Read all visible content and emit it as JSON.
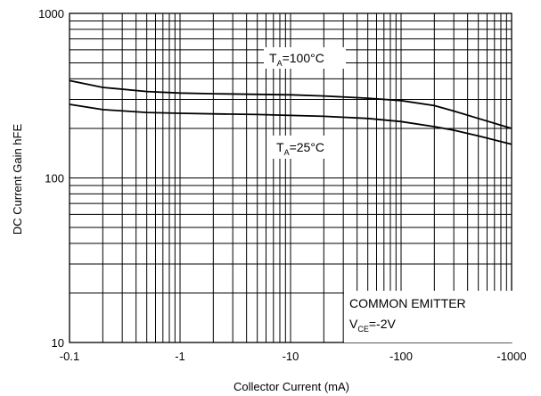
{
  "chart_data": {
    "type": "line",
    "xlabel": "Collector Current (mA)",
    "ylabel": "DC Current Gain hFE",
    "x_scale": "log",
    "y_scale": "log",
    "xlim": [
      0.1,
      1000
    ],
    "ylim": [
      10,
      1000
    ],
    "x_tick_labels": [
      "-0.1",
      "-1",
      "-10",
      "-100",
      "-1000"
    ],
    "y_tick_labels": [
      "10",
      "100",
      "1000"
    ],
    "grid": true,
    "series": [
      {
        "name": "TA=100°C",
        "x": [
          0.1,
          0.2,
          0.5,
          1,
          2,
          5,
          10,
          20,
          50,
          100,
          200,
          300,
          500,
          1000
        ],
        "values": [
          390,
          355,
          335,
          328,
          325,
          322,
          320,
          315,
          305,
          295,
          275,
          255,
          230,
          200
        ]
      },
      {
        "name": "TA=25°C",
        "x": [
          0.1,
          0.2,
          0.5,
          1,
          2,
          5,
          10,
          20,
          50,
          100,
          200,
          300,
          500,
          1000
        ],
        "values": [
          280,
          260,
          250,
          247,
          245,
          243,
          240,
          237,
          230,
          220,
          205,
          195,
          180,
          160
        ]
      }
    ],
    "annotations": {
      "t100": {
        "main": "T",
        "sub": "A",
        "rest": "=100°C"
      },
      "t25": {
        "main": "T",
        "sub": "A",
        "rest": "=25°C"
      },
      "legend_box": {
        "line1": "COMMON EMITTER",
        "line2_main": "V",
        "line2_sub": "CE",
        "line2_rest": "=-2V"
      }
    }
  }
}
